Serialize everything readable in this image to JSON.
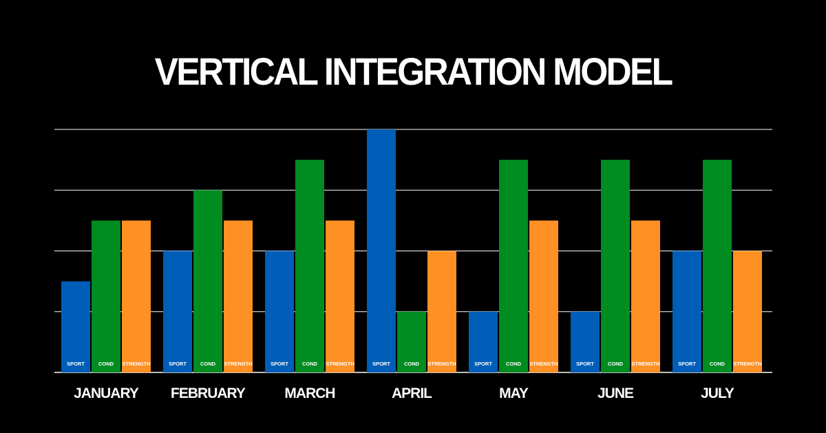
{
  "title": "VERTICAL INTEGRATION MODEL",
  "chart_data": {
    "type": "bar",
    "title": "VERTICAL INTEGRATION MODEL",
    "categories": [
      "JANUARY",
      "FEBRUARY",
      "MARCH",
      "APRIL",
      "MAY",
      "JUNE",
      "JULY"
    ],
    "series": [
      {
        "name": "SPORT",
        "color": "#005eb8",
        "values": [
          1.5,
          2,
          2,
          4,
          1,
          1,
          2
        ]
      },
      {
        "name": "COND",
        "color": "#008c21",
        "values": [
          2.5,
          3,
          3.5,
          1,
          3.5,
          3.5,
          3.5
        ]
      },
      {
        "name": "STRENGTH",
        "color": "#ff9024",
        "values": [
          2.5,
          2.5,
          2.5,
          2,
          2.5,
          2.5,
          2
        ]
      }
    ],
    "ylim": [
      0,
      4
    ],
    "grid": true,
    "xlabel": "",
    "ylabel": "",
    "background": "#000000",
    "gridline_color": "#ffffff"
  }
}
